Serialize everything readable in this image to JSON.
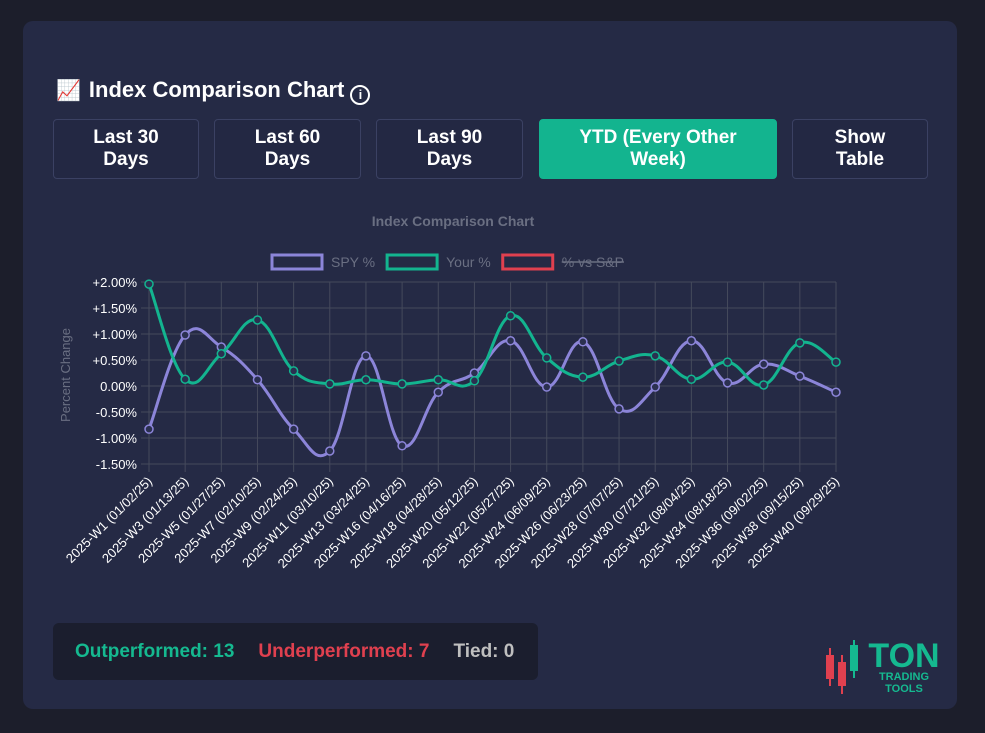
{
  "header": {
    "icon": "📈",
    "title": "Index Comparison Chart"
  },
  "buttons": [
    {
      "label": "Last 30 Days",
      "active": false
    },
    {
      "label": "Last 60 Days",
      "active": false
    },
    {
      "label": "Last 90 Days",
      "active": false
    },
    {
      "label": "YTD (Every Other Week)",
      "active": true
    },
    {
      "label": "Show Table",
      "active": false
    }
  ],
  "chart_data": {
    "type": "line",
    "title": "Index Comparison Chart",
    "y_label": "Percent Change",
    "categories": [
      "2025-W1 (01/02/25)",
      "2025-W3 (01/13/25)",
      "2025-W5 (01/27/25)",
      "2025-W7 (02/10/25)",
      "2025-W9 (02/24/25)",
      "2025-W11 (03/10/25)",
      "2025-W13 (03/24/25)",
      "2025-W16 (04/16/25)",
      "2025-W18 (04/28/25)",
      "2025-W20 (05/12/25)",
      "2025-W22 (05/27/25)",
      "2025-W24 (06/09/25)",
      "2025-W26 (06/23/25)",
      "2025-W28 (07/07/25)",
      "2025-W30 (07/21/25)",
      "2025-W32 (08/04/25)",
      "2025-W34 (08/18/25)",
      "2025-W36 (09/02/25)",
      "2025-W38 (09/15/25)",
      "2025-W40 (09/29/25)"
    ],
    "series": [
      {
        "name": "SPY %",
        "color": "#8c85d9",
        "values": [
          -0.83,
          0.98,
          0.75,
          0.12,
          -0.83,
          -1.25,
          0.58,
          -1.15,
          -0.12,
          0.25,
          0.87,
          -0.02,
          0.85,
          -0.44,
          -0.02,
          0.87,
          0.06,
          0.42,
          0.19,
          -0.12
        ]
      },
      {
        "name": "Your %",
        "color": "#13b48f",
        "values": [
          1.96,
          0.13,
          0.62,
          1.27,
          0.29,
          0.04,
          0.12,
          0.04,
          0.12,
          0.1,
          1.35,
          0.54,
          0.17,
          0.48,
          0.58,
          0.13,
          0.46,
          0.02,
          0.83,
          0.46
        ]
      },
      {
        "name": "% vs S&P",
        "color": "#e0404f",
        "hidden": true
      }
    ],
    "ylim": [
      -1.5,
      2.0
    ],
    "yticks": [
      {
        "value": 2.0,
        "label": "+2.00%"
      },
      {
        "value": 1.5,
        "label": "+1.50%"
      },
      {
        "value": 1.0,
        "label": "+1.00%"
      },
      {
        "value": 0.5,
        "label": "+0.50%"
      },
      {
        "value": 0,
        "label": "0.00%"
      },
      {
        "value": -0.5,
        "label": "-0.50%"
      },
      {
        "value": -1.0,
        "label": "-1.00%"
      },
      {
        "value": -1.5,
        "label": "-1.50%"
      }
    ],
    "grid": true,
    "legend": "top"
  },
  "summary": {
    "outperformed": {
      "label": "Outperformed:",
      "value": 13
    },
    "underperformed": {
      "label": "Underperformed:",
      "value": 7
    },
    "tied": {
      "label": "Tied:",
      "value": 0
    }
  },
  "logo": {
    "lines": [
      "TON",
      "TRADING",
      "TOOLS"
    ]
  }
}
